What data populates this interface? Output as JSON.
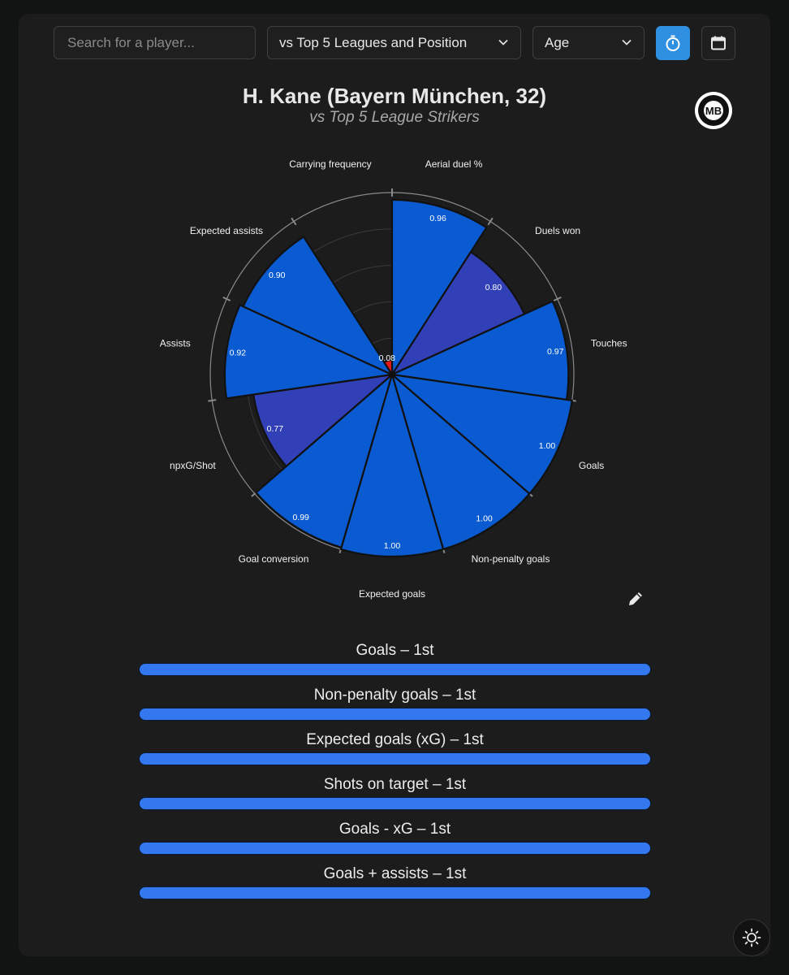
{
  "controls": {
    "search_placeholder": "Search for a player...",
    "comparison_select": "vs Top 5 Leagues and Position",
    "filter_select": "Age",
    "timer_icon": "stopwatch-icon",
    "calendar_icon": "calendar-icon"
  },
  "header": {
    "title": "H. Kane (Bayern München, 32)",
    "subtitle": "vs Top 5 League Strikers",
    "logo_icon": "mb-ball-logo"
  },
  "chart_data": {
    "type": "polar-bar",
    "rlim": [
      0,
      1
    ],
    "colors": {
      "high": "#0a5bd1",
      "mid": "#3240b8",
      "low": "#e8191b",
      "bg": "#1a1a1a"
    },
    "categories": [
      "Aerial duel %",
      "Duels won",
      "Touches",
      "Goals",
      "Non-penalty goals",
      "Expected goals",
      "Goal conversion",
      "npxG/Shot",
      "Assists",
      "Expected assists",
      "Carrying frequency"
    ],
    "values": [
      0.96,
      0.8,
      0.97,
      1.0,
      1.0,
      1.0,
      0.99,
      0.77,
      0.92,
      0.9,
      0.08
    ],
    "value_labels": [
      "0.96",
      "0.80",
      "0.97",
      "1.00",
      "1.00",
      "1.00",
      "0.99",
      "0.77",
      "0.92",
      "0.90",
      "0.08"
    ]
  },
  "rankings": [
    {
      "label": "Goals – 1st",
      "value": 1
    },
    {
      "label": "Non-penalty goals – 1st",
      "value": 1
    },
    {
      "label": "Expected goals (xG) – 1st",
      "value": 1
    },
    {
      "label": "Shots on target – 1st",
      "value": 1
    },
    {
      "label": "Goals - xG – 1st",
      "value": 1
    },
    {
      "label": "Goals + assists – 1st",
      "value": 1
    }
  ],
  "edit_icon": "pencil-icon",
  "theme_icon": "sun-icon"
}
